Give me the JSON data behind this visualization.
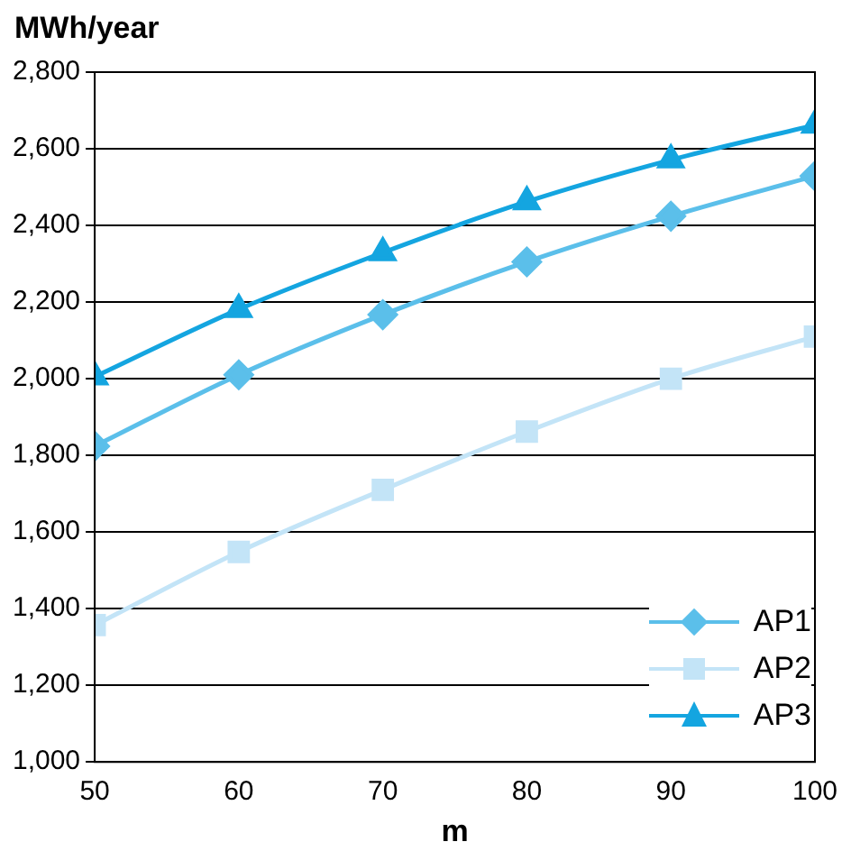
{
  "chart_data": {
    "type": "line",
    "xlabel": "m",
    "ylabel": "MWh/year",
    "x": [
      50,
      60,
      70,
      80,
      90,
      100
    ],
    "series": [
      {
        "name": "AP1",
        "color": "#5bbfea",
        "marker": "diamond",
        "values": [
          1824,
          2010,
          2167,
          2305,
          2424,
          2529
        ]
      },
      {
        "name": "AP2",
        "color": "#c3e4f7",
        "marker": "square",
        "values": [
          1357,
          1548,
          1710,
          1862,
          2000,
          2110
        ]
      },
      {
        "name": "AP3",
        "color": "#14a5e0",
        "marker": "triangle",
        "values": [
          2005,
          2181,
          2329,
          2462,
          2571,
          2662
        ]
      }
    ],
    "xlim": [
      50,
      100
    ],
    "xticks": [
      50,
      60,
      70,
      80,
      90,
      100
    ],
    "ylim": [
      1000,
      2800
    ],
    "yticks": [
      {
        "value": 1000,
        "label": "1,000"
      },
      {
        "value": 1200,
        "label": "1,200"
      },
      {
        "value": 1400,
        "label": "1,400"
      },
      {
        "value": 1600,
        "label": "1,600"
      },
      {
        "value": 1800,
        "label": "1,800"
      },
      {
        "value": 2000,
        "label": "2,000"
      },
      {
        "value": 2200,
        "label": "2,200"
      },
      {
        "value": 2400,
        "label": "2,400"
      },
      {
        "value": 2600,
        "label": "2,600"
      },
      {
        "value": 2800,
        "label": "2,800"
      }
    ],
    "grid": "y",
    "legend": "bottom right",
    "line_style": "solid"
  }
}
